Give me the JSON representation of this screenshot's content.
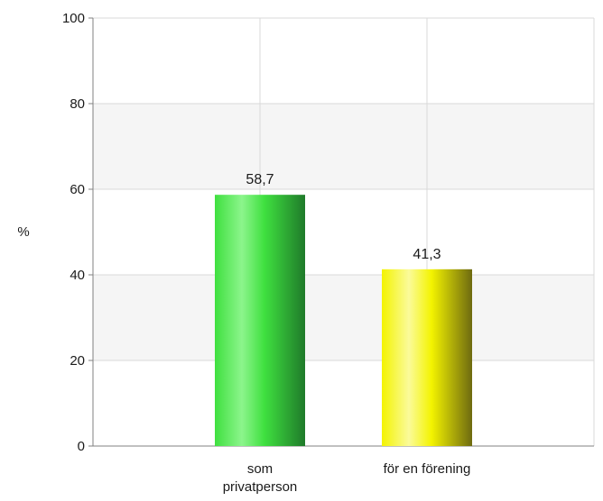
{
  "chart_data": {
    "type": "bar",
    "categories": [
      "som privatperson",
      "för en förening"
    ],
    "category_label_lines": [
      [
        "som",
        "privatperson"
      ],
      [
        "för en förening"
      ]
    ],
    "values": [
      58.7,
      41.3
    ],
    "value_labels": [
      "58,7",
      "41,3"
    ],
    "ylabel": "%",
    "ylim": [
      0,
      100
    ],
    "yticks": [
      0,
      20,
      40,
      60,
      80,
      100
    ],
    "grid": true,
    "legend": "none",
    "bar_colors": [
      {
        "light": "#8cf58c",
        "base": "#3fe03f",
        "dark": "#1f7a2a"
      },
      {
        "light": "#fbfb9a",
        "base": "#f3f300",
        "dark": "#6e6a10"
      }
    ],
    "band_color": "#f5f5f5",
    "grid_color": "#d9d9d9",
    "axis_color": "#808080"
  }
}
